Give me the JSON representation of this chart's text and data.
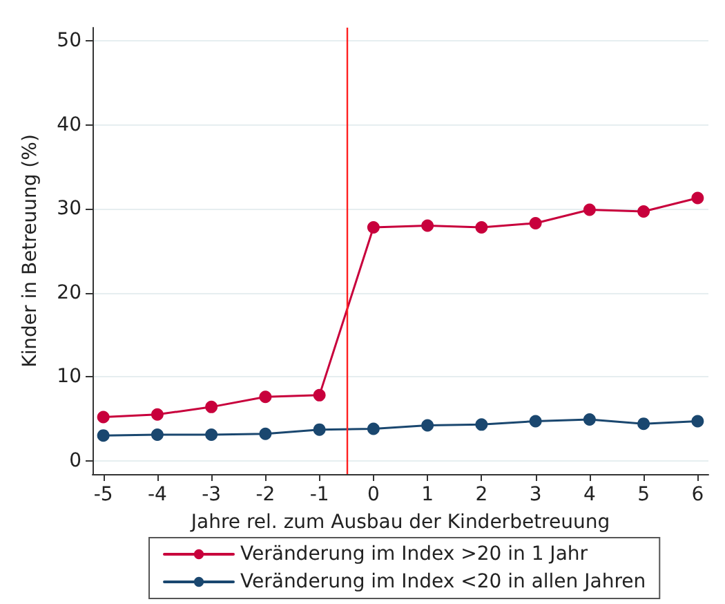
{
  "chart_data": {
    "type": "line",
    "xlabel": "Jahre rel. zum Ausbau der Kinderbetreuung",
    "ylabel": "Kinder in Betreuung (%)",
    "x": [
      -5,
      -4,
      -3,
      -2,
      -1,
      0,
      1,
      2,
      3,
      4,
      5,
      6
    ],
    "series": [
      {
        "name": "Veränderung im Index >20 in 1 Jahr",
        "color": "#c8003c",
        "values": [
          5.2,
          5.5,
          6.4,
          7.6,
          7.8,
          27.8,
          28.0,
          27.8,
          28.3,
          29.9,
          29.7,
          31.3
        ]
      },
      {
        "name": "Veränderung im Index <20 in allen Jahren",
        "color": "#1a476f",
        "values": [
          3.0,
          3.1,
          3.1,
          3.2,
          3.7,
          3.8,
          4.2,
          4.3,
          4.7,
          4.9,
          4.4,
          4.7
        ]
      }
    ],
    "xlim": [
      -5.2,
      6.2
    ],
    "xticks": [
      -5,
      -4,
      -3,
      -2,
      -1,
      0,
      1,
      2,
      3,
      4,
      5,
      6
    ],
    "ylim": [
      -1.6,
      51.6
    ],
    "yticks": [
      0,
      10,
      20,
      30,
      40,
      50
    ],
    "ref_lines": [
      {
        "axis": "x",
        "value": -0.5,
        "color": "#ff2020"
      }
    ],
    "grid": "y",
    "legend": "bottom",
    "marker": "circle",
    "line_style": "solid"
  }
}
